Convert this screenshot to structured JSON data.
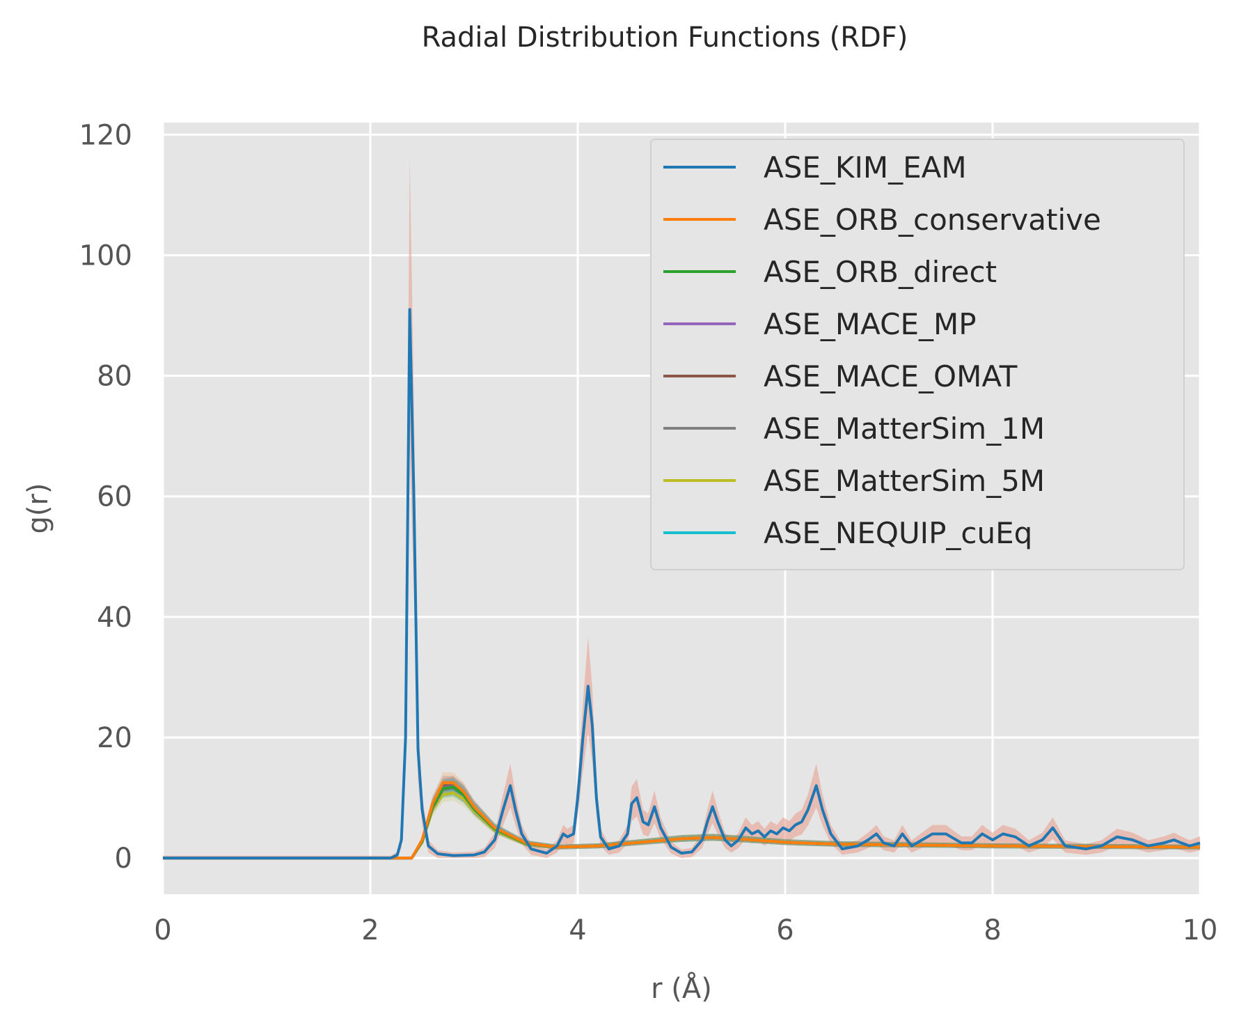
{
  "chart_data": {
    "type": "line",
    "title": "Radial Distribution Functions (RDF)",
    "xlabel": "r (Å)",
    "ylabel": "g(r)",
    "xlim": [
      0,
      10
    ],
    "ylim": [
      -6,
      122
    ],
    "xticks": [
      0,
      2,
      4,
      6,
      8,
      10
    ],
    "yticks": [
      0,
      20,
      40,
      60,
      80,
      100,
      120
    ],
    "grid": true,
    "legend_position": "top-right",
    "series": [
      {
        "name": "ASE_KIM_EAM",
        "color": "#1f77b4",
        "x": [
          0,
          2.2,
          2.26,
          2.3,
          2.34,
          2.38,
          2.42,
          2.46,
          2.5,
          2.56,
          2.65,
          2.8,
          3.0,
          3.1,
          3.2,
          3.28,
          3.35,
          3.4,
          3.46,
          3.55,
          3.7,
          3.8,
          3.86,
          3.9,
          3.96,
          4.0,
          4.05,
          4.1,
          4.14,
          4.18,
          4.22,
          4.3,
          4.4,
          4.48,
          4.52,
          4.57,
          4.63,
          4.68,
          4.74,
          4.8,
          4.9,
          5.0,
          5.1,
          5.2,
          5.25,
          5.3,
          5.35,
          5.42,
          5.48,
          5.55,
          5.62,
          5.68,
          5.74,
          5.8,
          5.86,
          5.92,
          5.98,
          6.04,
          6.1,
          6.16,
          6.22,
          6.3,
          6.36,
          6.44,
          6.55,
          6.7,
          6.8,
          6.88,
          6.95,
          7.05,
          7.13,
          7.22,
          7.32,
          7.42,
          7.55,
          7.7,
          7.8,
          7.9,
          8.0,
          8.1,
          8.22,
          8.35,
          8.48,
          8.58,
          8.7,
          8.9,
          9.05,
          9.2,
          9.35,
          9.5,
          9.65,
          9.75,
          9.82,
          9.9,
          10.0
        ],
        "y": [
          0,
          0,
          0.5,
          3,
          20,
          91,
          60,
          18,
          8,
          2,
          0.7,
          0.4,
          0.5,
          1,
          3,
          8,
          12,
          8,
          4,
          1.5,
          0.8,
          2,
          4,
          3.5,
          4,
          10,
          20,
          28.5,
          22,
          10,
          3.5,
          1.5,
          2,
          4,
          9,
          10,
          6,
          5.5,
          8.5,
          5,
          1.8,
          0.8,
          1,
          3,
          6,
          8.5,
          6,
          3,
          2,
          3,
          5,
          4,
          4.5,
          3.5,
          4.5,
          4,
          5,
          4.5,
          5.5,
          6,
          8,
          12,
          8,
          4,
          1.5,
          2,
          3,
          4,
          2.5,
          2,
          4,
          2,
          3,
          4,
          4,
          2.5,
          2.5,
          4,
          3,
          4,
          3.5,
          2,
          3,
          5,
          2,
          1.5,
          2,
          3.5,
          3,
          2,
          2.5,
          3,
          2.5,
          2,
          2.5
        ]
      },
      {
        "name": "ASE_ORB_conservative",
        "color": "#ff7f0e",
        "x": [
          0,
          2.4,
          2.5,
          2.6,
          2.7,
          2.8,
          2.9,
          3.0,
          3.2,
          3.5,
          3.8,
          4.2,
          4.6,
          5.0,
          5.3,
          5.6,
          6.0,
          6.5,
          7.0,
          8.0,
          9.0,
          10.0
        ],
        "y": [
          0,
          0,
          3,
          9,
          12.5,
          12.5,
          11,
          8.5,
          5,
          2.5,
          1.8,
          2,
          2.6,
          3.2,
          3.4,
          3.1,
          2.6,
          2.3,
          2.2,
          2.0,
          1.9,
          1.8
        ]
      },
      {
        "name": "ASE_ORB_direct",
        "color": "#2ca02c",
        "x": [
          0,
          2.4,
          2.5,
          2.6,
          2.7,
          2.8,
          2.9,
          3.0,
          3.2,
          3.5,
          3.8,
          4.2,
          4.6,
          5.0,
          5.3,
          5.6,
          6.0,
          6.5,
          7.0,
          8.0,
          9.0,
          10.0
        ],
        "y": [
          0,
          0,
          2.8,
          8.5,
          11.5,
          11.8,
          10.5,
          8.2,
          4.8,
          2.4,
          1.8,
          2,
          2.6,
          3.2,
          3.4,
          3.1,
          2.6,
          2.3,
          2.2,
          2.0,
          1.9,
          1.8
        ]
      },
      {
        "name": "ASE_MACE_MP",
        "color": "#9467bd",
        "x": [
          0,
          2.4,
          2.5,
          2.6,
          2.7,
          2.8,
          2.9,
          3.0,
          3.2,
          3.5,
          3.8,
          4.2,
          4.6,
          5.0,
          5.3,
          5.6,
          6.0,
          6.5,
          7.0,
          8.0,
          9.0,
          10.0
        ],
        "y": [
          0,
          0,
          2.8,
          8.6,
          11.6,
          11.9,
          10.6,
          8.3,
          4.9,
          2.4,
          1.8,
          2,
          2.6,
          3.2,
          3.4,
          3.1,
          2.6,
          2.3,
          2.2,
          2.0,
          1.9,
          1.8
        ]
      },
      {
        "name": "ASE_MACE_OMAT",
        "color": "#8c564b",
        "x": [
          0,
          2.4,
          2.5,
          2.6,
          2.7,
          2.8,
          2.9,
          3.0,
          3.2,
          3.5,
          3.8,
          4.2,
          4.6,
          5.0,
          5.3,
          5.6,
          6.0,
          6.5,
          7.0,
          8.0,
          9.0,
          10.0
        ],
        "y": [
          0,
          0,
          3,
          9,
          12,
          12,
          10.8,
          8.3,
          4.9,
          2.4,
          1.8,
          2,
          2.6,
          3.2,
          3.4,
          3.1,
          2.6,
          2.3,
          2.2,
          2.0,
          1.9,
          1.8
        ]
      },
      {
        "name": "ASE_MatterSim_1M",
        "color": "#7f7f7f",
        "x": [
          0,
          2.4,
          2.5,
          2.6,
          2.7,
          2.8,
          2.9,
          3.0,
          3.2,
          3.5,
          3.8,
          4.2,
          4.6,
          5.0,
          5.3,
          5.6,
          6.0,
          6.5,
          7.0,
          8.0,
          9.0,
          10.0
        ],
        "y": [
          0,
          0,
          2.7,
          8.3,
          11.3,
          11.6,
          10.4,
          8.1,
          4.8,
          2.4,
          1.8,
          2,
          2.6,
          3.2,
          3.4,
          3.1,
          2.6,
          2.3,
          2.2,
          2.0,
          1.9,
          1.8
        ]
      },
      {
        "name": "ASE_MatterSim_5M",
        "color": "#bcbd22",
        "x": [
          0,
          2.4,
          2.5,
          2.6,
          2.7,
          2.8,
          2.9,
          3.0,
          3.2,
          3.5,
          3.8,
          4.2,
          4.6,
          5.0,
          5.3,
          5.6,
          6.0,
          6.5,
          7.0,
          8.0,
          9.0,
          10.0
        ],
        "y": [
          0,
          0,
          2.6,
          8,
          10.5,
          10.8,
          9.8,
          7.8,
          4.6,
          2.3,
          1.8,
          2,
          2.6,
          3.2,
          3.4,
          3.1,
          2.6,
          2.3,
          2.2,
          2.0,
          1.9,
          1.8
        ]
      },
      {
        "name": "ASE_NEQUIP_cuEq",
        "color": "#17becf",
        "x": [
          0,
          2.4,
          2.5,
          2.6,
          2.7,
          2.8,
          2.9,
          3.0,
          3.2,
          3.5,
          3.8,
          4.2,
          4.6,
          5.0,
          5.3,
          5.6,
          6.0,
          6.5,
          7.0,
          8.0,
          9.0,
          10.0
        ],
        "y": [
          0,
          0,
          2.8,
          8.6,
          11.3,
          11.5,
          10.4,
          8.3,
          5,
          2.5,
          1.8,
          2,
          2.6,
          3.2,
          3.4,
          3.1,
          2.6,
          2.3,
          2.2,
          2.0,
          1.9,
          1.8
        ]
      }
    ]
  }
}
